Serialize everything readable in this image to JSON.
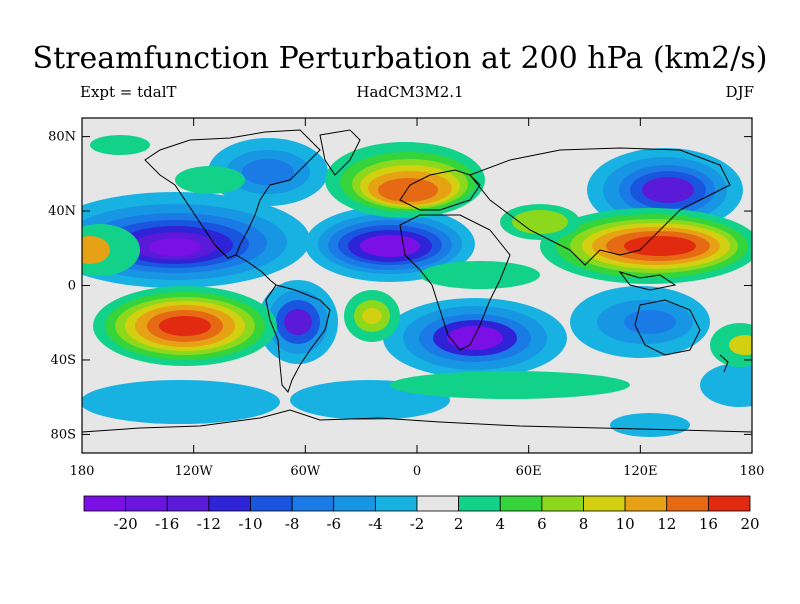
{
  "title": "Streamfunction Perturbation at 200 hPa (km2/s)",
  "left_label": "Expt = tdalT",
  "center_label": "HadCM3M2.1",
  "right_label": "DJF",
  "y_ticks": [
    {
      "lat": 80,
      "label": "80N"
    },
    {
      "lat": 40,
      "label": "40N"
    },
    {
      "lat": 0,
      "label": "0"
    },
    {
      "lat": -40,
      "label": "40S"
    },
    {
      "lat": -80,
      "label": "80S"
    }
  ],
  "x_ticks": [
    {
      "lon": -180,
      "label": "180"
    },
    {
      "lon": -120,
      "label": "120W"
    },
    {
      "lon": -60,
      "label": "60W"
    },
    {
      "lon": 0,
      "label": "0"
    },
    {
      "lon": 60,
      "label": "60E"
    },
    {
      "lon": 120,
      "label": "120E"
    },
    {
      "lon": 180,
      "label": "180"
    }
  ],
  "colorbar": {
    "colors": [
      "#7a10e6",
      "#6a14e0",
      "#5a1ad8",
      "#2f23d8",
      "#1a55e0",
      "#1a7be6",
      "#1796e3",
      "#17b2e2",
      "#e6e6e6",
      "#12d28a",
      "#34d43a",
      "#8cd81c",
      "#d2d010",
      "#e6a214",
      "#e66a14",
      "#e22a10"
    ],
    "labels": [
      "-20",
      "-16",
      "-12",
      "-10",
      "-8",
      "-6",
      "-4",
      "-2",
      "2",
      "4",
      "6",
      "8",
      "10",
      "12",
      "16",
      "20"
    ]
  }
}
